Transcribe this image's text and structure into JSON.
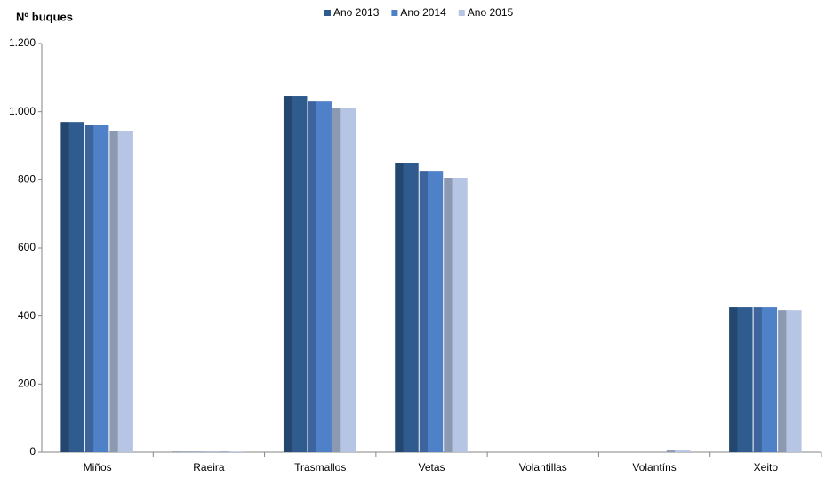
{
  "chart_data": {
    "type": "bar",
    "y_label": "Nº buques",
    "categories": [
      "Miños",
      "Raeira",
      "Trasmallos",
      "Vetas",
      "Volantillas",
      "Volantíns",
      "Xeito"
    ],
    "series": [
      {
        "name": "Ano 2013",
        "color": "#2f5b8f",
        "values": [
          970,
          1,
          1046,
          848,
          0,
          0,
          425
        ]
      },
      {
        "name": "Ano 2014",
        "color": "#4f81c9",
        "values": [
          960,
          1,
          1030,
          824,
          0,
          0,
          425
        ]
      },
      {
        "name": "Ano 2015",
        "color": "#b5c5e3",
        "values": [
          942,
          2,
          1012,
          806,
          0,
          5,
          417
        ]
      }
    ],
    "ylim": [
      0,
      1200
    ],
    "yticks": [
      0,
      200,
      400,
      600,
      800,
      {
        "value": 1000,
        "label": "1.000"
      },
      {
        "value": 1200,
        "label": "1.200"
      }
    ],
    "grid": false,
    "legend": "top"
  }
}
